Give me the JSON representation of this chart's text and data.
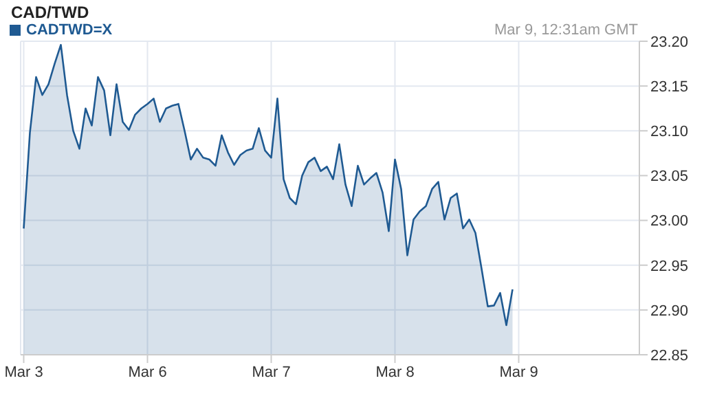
{
  "chart_data": {
    "type": "area",
    "title": "CAD/TWD",
    "subtitle": "Mar 9, 12:31am GMT",
    "categories": [
      "Mar 3",
      null,
      null,
      null,
      null,
      null,
      null,
      null,
      null,
      null,
      null,
      null,
      null,
      null,
      null,
      null,
      null,
      null,
      null,
      null,
      "Mar 6",
      null,
      null,
      null,
      null,
      null,
      null,
      null,
      null,
      null,
      null,
      null,
      null,
      null,
      null,
      null,
      null,
      null,
      null,
      null,
      "Mar 7",
      null,
      null,
      null,
      null,
      null,
      null,
      null,
      null,
      null,
      null,
      null,
      null,
      null,
      null,
      null,
      null,
      null,
      null,
      null,
      "Mar 8",
      null,
      null,
      null,
      null,
      null,
      null,
      null,
      null,
      null,
      null,
      null,
      null,
      null,
      null,
      null,
      null,
      null,
      null,
      null,
      "Mar 9",
      null,
      null,
      null,
      null,
      null,
      null,
      null,
      null,
      null,
      null,
      null,
      null,
      null,
      null,
      null,
      null,
      null,
      null,
      null
    ],
    "series": [
      {
        "name": "CADTWD=X",
        "color": "#1f5a92",
        "values": [
          22.991,
          23.098,
          23.16,
          23.14,
          23.152,
          23.175,
          23.196,
          23.14,
          23.1,
          23.08,
          23.125,
          23.106,
          23.16,
          23.145,
          23.095,
          23.152,
          23.11,
          23.101,
          23.118,
          23.125,
          23.13,
          23.136,
          23.11,
          23.125,
          23.128,
          23.13,
          23.1,
          23.068,
          23.08,
          23.07,
          23.068,
          23.061,
          23.095,
          23.076,
          23.062,
          23.073,
          23.078,
          23.08,
          23.103,
          23.078,
          23.07,
          23.136,
          23.046,
          23.025,
          23.018,
          23.05,
          23.065,
          23.07,
          23.055,
          23.06,
          23.046,
          23.085,
          23.04,
          23.016,
          23.061,
          23.04,
          23.047,
          23.053,
          23.031,
          22.988,
          23.068,
          23.035,
          22.961,
          23.001,
          23.01,
          23.016,
          23.035,
          23.043,
          23.001,
          23.025,
          23.03,
          22.991,
          23.001,
          22.986,
          22.946,
          22.904,
          22.905,
          22.919,
          22.883,
          22.923,
          null,
          null,
          null,
          null,
          null,
          null,
          null,
          null,
          null,
          null,
          null,
          null,
          null,
          null,
          null,
          null,
          null,
          null,
          null,
          null
        ]
      }
    ],
    "ylim": [
      22.85,
      23.2
    ],
    "yticks": [
      22.85,
      {
        "value": 22.9,
        "label": "22.90"
      },
      22.95,
      {
        "value": 23.0,
        "label": "23.00"
      },
      23.05,
      {
        "value": 23.1,
        "label": "23.10"
      },
      23.15,
      {
        "value": 23.2,
        "label": "23.20"
      }
    ],
    "grid": true,
    "legend": "top left"
  }
}
